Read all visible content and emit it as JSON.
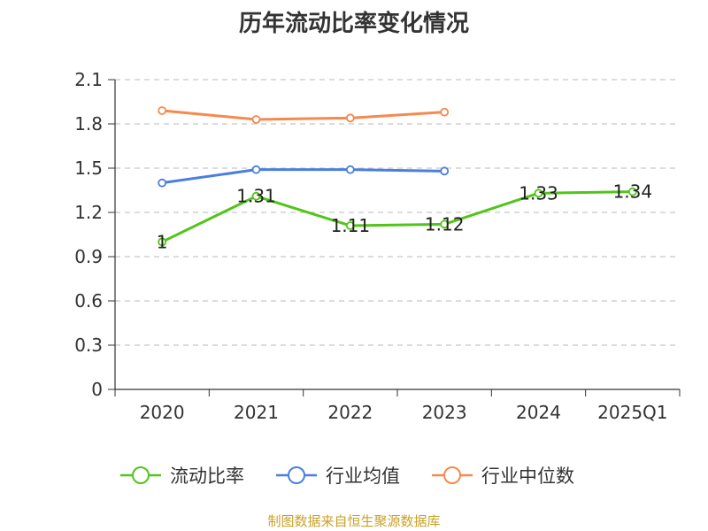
{
  "chart_data": {
    "type": "line",
    "title": "历年流动比率变化情况",
    "categories": [
      "2020",
      "2021",
      "2022",
      "2023",
      "2024",
      "2025Q1"
    ],
    "ylim": [
      0,
      2.1
    ],
    "yticks": [
      "0",
      "0.3",
      "0.6",
      "0.9",
      "1.2",
      "1.5",
      "1.8",
      "2.1"
    ],
    "grid": true,
    "legend_position": "bottom",
    "series": [
      {
        "name": "流动比率",
        "color": "#52c41a",
        "values": [
          1.0,
          1.31,
          1.11,
          1.12,
          1.33,
          1.34
        ],
        "labels": [
          "1",
          "1.31",
          "1.11",
          "1.12",
          "1.33",
          "1.34"
        ]
      },
      {
        "name": "行业均值",
        "color": "#4a7fdc",
        "values": [
          1.4,
          1.49,
          1.49,
          1.48,
          null,
          null
        ]
      },
      {
        "name": "行业中位数",
        "color": "#f5894e",
        "values": [
          1.89,
          1.83,
          1.84,
          1.88,
          null,
          null
        ]
      }
    ]
  },
  "footer": {
    "source": "制图数据来自恒生聚源数据库"
  }
}
